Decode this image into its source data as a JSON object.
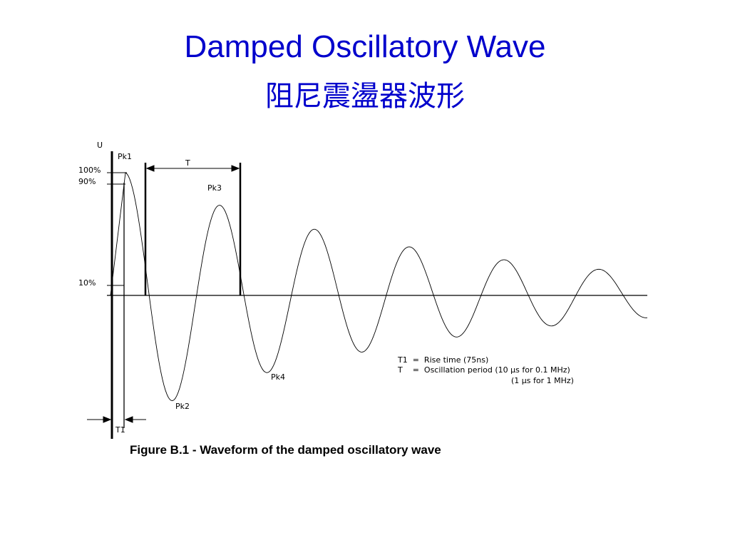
{
  "header": {
    "title": "Damped Oscillatory Wave",
    "subtitle": "阻尼震盪器波形"
  },
  "figure": {
    "axis_label": "U",
    "levels": [
      "100%",
      "90%",
      "10%"
    ],
    "peaks": [
      "Pk1",
      "Pk2",
      "Pk3",
      "Pk4"
    ],
    "period_label": "T",
    "rise_label": "T1",
    "legend": [
      "T1  =  Rise time (75ns)",
      "T    =  Oscillation period (10 µs for 0.1 MHz)",
      "(1 µs for 1 MHz)"
    ],
    "caption": "Figure B.1 - Waveform of the damped oscillatory wave"
  }
}
